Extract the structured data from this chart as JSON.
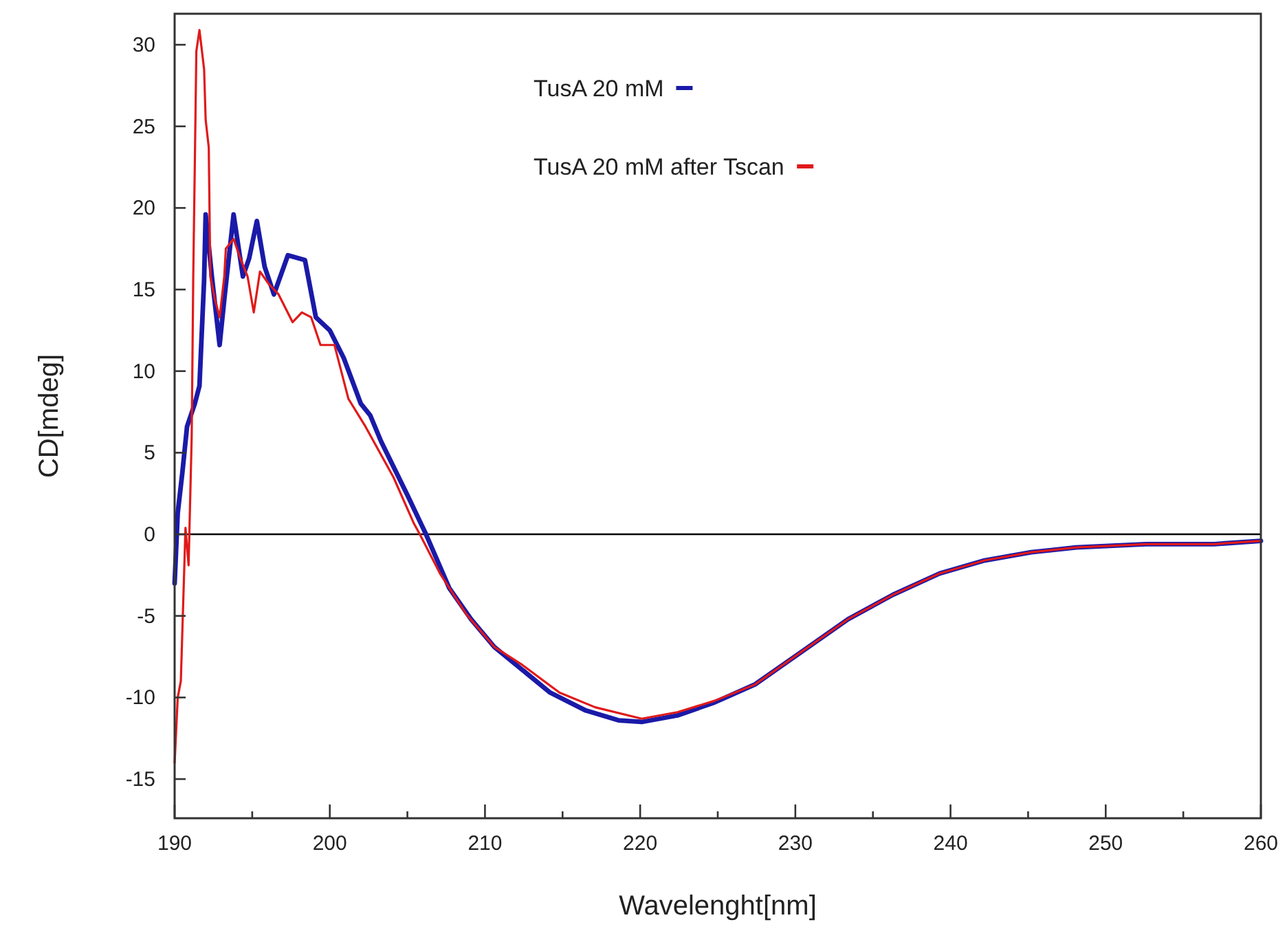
{
  "chart_data": {
    "type": "line",
    "xlabel": "Wavelenght[nm]",
    "ylabel": "CD[mdeg]",
    "xlim": [
      190,
      260
    ],
    "ylim": [
      -17.4,
      31.9
    ],
    "xticks": [
      190,
      {
        "value": 195,
        "label": null
      },
      200,
      {
        "value": 205,
        "label": null
      },
      210,
      {
        "value": 215,
        "label": null
      },
      220,
      {
        "value": 225,
        "label": null
      },
      230,
      {
        "value": 235,
        "label": null
      },
      240,
      {
        "value": 245,
        "label": null
      },
      250,
      {
        "value": 255,
        "label": null
      },
      260
    ],
    "yticks": [
      -15,
      -10,
      -5,
      0,
      5,
      10,
      15,
      20,
      25,
      30
    ],
    "grid": false,
    "legend": "top",
    "marker": "none",
    "line_style": "solid",
    "ref_lines": [
      {
        "axis": "y",
        "value": 0,
        "color": "#000000"
      }
    ],
    "series": [
      {
        "name": "TusA 20 mM",
        "color": "#1a1aa8",
        "x": [
          190.0,
          190.2,
          190.5,
          190.8,
          191.3,
          191.6,
          191.9,
          192.0,
          192.4,
          192.9,
          193.2,
          193.8,
          194.4,
          194.8,
          195.3,
          195.8,
          196.4,
          197.3,
          198.4,
          199.1,
          200.0,
          200.9,
          202.0,
          202.6,
          203.3,
          205.0,
          206.2,
          207.7,
          209.1,
          210.6,
          212.4,
          214.2,
          216.5,
          218.6,
          220.1,
          222.4,
          224.8,
          227.4,
          230.4,
          233.4,
          236.3,
          239.3,
          242.2,
          245.2,
          248.1,
          252.6,
          257.0,
          260.0
        ],
        "values": [
          -3,
          1.3,
          3.8,
          6.6,
          8.0,
          9.1,
          15.6,
          19.6,
          15.8,
          11.6,
          14.4,
          19.6,
          15.8,
          16.9,
          19.2,
          16.4,
          14.7,
          17.1,
          16.8,
          13.3,
          12.5,
          10.8,
          8.0,
          7.3,
          5.7,
          2.4,
          0,
          -3.3,
          -5.2,
          -6.9,
          -8.3,
          -9.7,
          -10.8,
          -11.4,
          -11.5,
          -11.1,
          -10.3,
          -9.2,
          -7.2,
          -5.2,
          -3.7,
          -2.4,
          -1.6,
          -1.1,
          -0.8,
          -0.6,
          -0.6,
          -0.4
        ]
      },
      {
        "name": "TusA 20 mM after Tscan",
        "color": "#e01a1a",
        "x": [
          190.0,
          190.2,
          190.4,
          190.7,
          190.9,
          191.1,
          191.2,
          191.3,
          191.4,
          191.6,
          191.9,
          192.0,
          192.2,
          192.3,
          192.6,
          192.9,
          193.2,
          193.3,
          193.8,
          194.2,
          194.7,
          195.1,
          195.5,
          196.1,
          196.7,
          197.6,
          198.2,
          198.8,
          199.4,
          200.3,
          201.2,
          202.3,
          204.1,
          205.4,
          205.8,
          207.1,
          208.8,
          210.6,
          212.4,
          214.8,
          217.1,
          220.1,
          222.4,
          224.8,
          227.4,
          230.4,
          233.4,
          236.3,
          239.3,
          242.2,
          245.2,
          248.1,
          252.6,
          257.0,
          260.0
        ],
        "values": [
          -14,
          -10,
          -9,
          0.4,
          -1.9,
          6.0,
          15.8,
          22.6,
          29.6,
          30.9,
          28.5,
          25.4,
          23.7,
          15.8,
          14.4,
          13.3,
          15.8,
          17.5,
          18.1,
          17.0,
          15.8,
          13.6,
          16.1,
          15.3,
          14.7,
          13.0,
          13.6,
          13.3,
          11.6,
          11.6,
          8.3,
          6.6,
          3.5,
          0.7,
          0,
          -2.4,
          -4.9,
          -6.9,
          -8.0,
          -9.7,
          -10.6,
          -11.3,
          -10.9,
          -10.2,
          -9.2,
          -7.2,
          -5.2,
          -3.7,
          -2.4,
          -1.6,
          -1.1,
          -0.8,
          -0.6,
          -0.6,
          -0.4
        ]
      }
    ]
  }
}
